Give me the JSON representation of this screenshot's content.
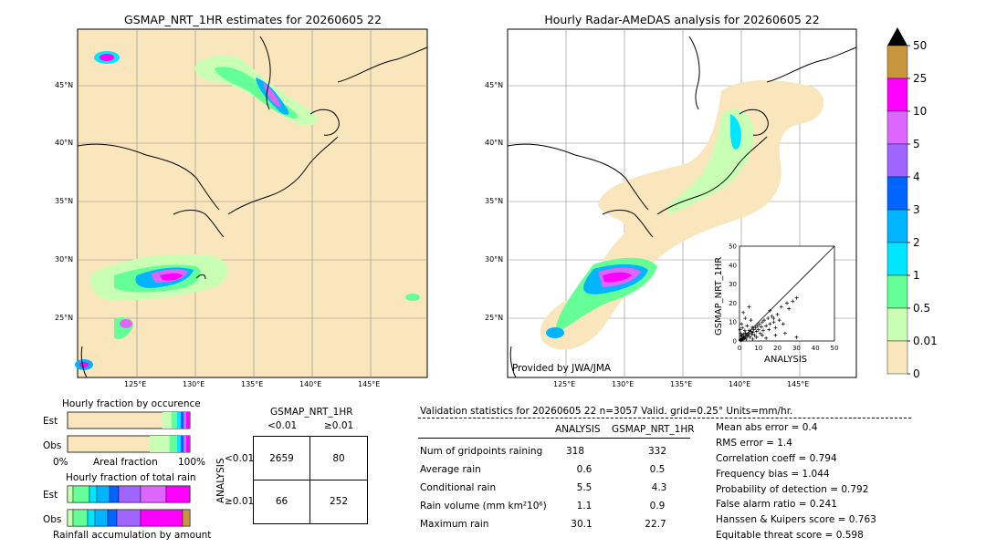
{
  "left_map": {
    "title": "GSMAP_NRT_1HR estimates for 20260605 22",
    "lon_labels": [
      "125°E",
      "130°E",
      "135°E",
      "140°E",
      "145°E"
    ],
    "lat_labels": [
      "45°N",
      "40°N",
      "35°N",
      "30°N",
      "25°N"
    ]
  },
  "right_map": {
    "title": "Hourly Radar-AMeDAS analysis for 20260605 22",
    "lon_labels": [
      "125°E",
      "130°E",
      "135°E",
      "140°E",
      "145°E"
    ],
    "lat_labels": [
      "45°N",
      "40°N",
      "35°N",
      "30°N",
      "25°N"
    ],
    "credit": "Provided by JWA/JMA"
  },
  "colorbar": {
    "labels": [
      "50",
      "25",
      "10",
      "5",
      "4",
      "3",
      "2",
      "1",
      "0.5",
      "0.01",
      "0"
    ],
    "colors": [
      "#c8963c",
      "#ff00ff",
      "#dd66ff",
      "#a064ff",
      "#0064ff",
      "#00b4ff",
      "#00e6ff",
      "#64ff96",
      "#c8ffb4",
      "#fae6bc"
    ],
    "extend_color": "#000000"
  },
  "fraction_occurrence": {
    "title": "Hourly fraction by occurence",
    "rows": [
      "Est",
      "Obs"
    ],
    "axis_left": "0%",
    "axis_mid": "Areal fraction",
    "axis_right": "100%"
  },
  "fraction_total": {
    "title": "Hourly fraction of total rain",
    "rows": [
      "Est",
      "Obs"
    ],
    "axis_label": "Rainfall accumulation by amount"
  },
  "contingency": {
    "col_header": "GSMAP_NRT_1HR",
    "col_labels": [
      "<0.01",
      "≥0.01"
    ],
    "row_header": "ANALYSIS",
    "row_labels": [
      "<0.01",
      "≥0.01"
    ],
    "cells": [
      [
        "2659",
        "80"
      ],
      [
        "66",
        "252"
      ]
    ]
  },
  "validation": {
    "header": "Validation statistics for 20260605 22  n=3057 Valid. grid=0.25° Units=mm/hr.",
    "col_analysis": "ANALYSIS",
    "col_gsmap": "GSMAP_NRT_1HR",
    "rows": [
      {
        "label": "Num of gridpoints raining",
        "analysis": "318",
        "gsmap": "332"
      },
      {
        "label": "Average rain",
        "analysis": "0.6",
        "gsmap": "0.5"
      },
      {
        "label": "Conditional rain",
        "analysis": "5.5",
        "gsmap": "4.3"
      },
      {
        "label": "Rain volume (mm km²10⁶)",
        "analysis": "1.1",
        "gsmap": "0.9"
      },
      {
        "label": "Maximum rain",
        "analysis": "30.1",
        "gsmap": "22.7"
      }
    ],
    "scores": [
      "Mean abs error =    0.4",
      "RMS error =    1.4",
      "Correlation coeff =  0.794",
      "Frequency bias =  1.044",
      "Probability of detection =  0.792",
      "False alarm ratio =  0.241",
      "Hanssen & Kuipers score =  0.763",
      "Equitable threat score =  0.598"
    ]
  },
  "chart_data": {
    "type": "scatter",
    "xlabel": "ANALYSIS",
    "ylabel": "GSMAP_NRT_1HR",
    "xlim": [
      0,
      50
    ],
    "ylim": [
      0,
      50
    ],
    "x_ticks": [
      "0",
      "10",
      "20",
      "30",
      "40",
      "50"
    ],
    "y_ticks": [
      "0",
      "10",
      "20",
      "30",
      "40",
      "50"
    ],
    "points": [
      [
        0.5,
        0.3
      ],
      [
        1,
        0.5
      ],
      [
        1.5,
        1
      ],
      [
        2,
        0.8
      ],
      [
        2.5,
        1.5
      ],
      [
        3,
        2
      ],
      [
        0.8,
        2.5
      ],
      [
        1.2,
        3
      ],
      [
        2,
        3.5
      ],
      [
        3.5,
        1
      ],
      [
        4,
        2.5
      ],
      [
        4.5,
        3
      ],
      [
        5,
        4
      ],
      [
        5.5,
        2
      ],
      [
        6,
        5
      ],
      [
        6.5,
        3.5
      ],
      [
        7,
        4.5
      ],
      [
        7.5,
        6
      ],
      [
        8,
        3
      ],
      [
        8.5,
        7
      ],
      [
        9,
        5
      ],
      [
        9.5,
        8
      ],
      [
        10,
        6
      ],
      [
        10.5,
        9
      ],
      [
        11,
        4
      ],
      [
        11.5,
        7.5
      ],
      [
        12,
        10
      ],
      [
        12.5,
        5.5
      ],
      [
        13,
        11
      ],
      [
        14,
        8
      ],
      [
        15,
        12
      ],
      [
        15.5,
        6
      ],
      [
        16,
        9
      ],
      [
        17,
        13
      ],
      [
        18,
        10
      ],
      [
        19,
        7
      ],
      [
        20,
        14
      ],
      [
        21,
        11
      ],
      [
        22,
        18
      ],
      [
        23,
        9
      ],
      [
        25,
        20
      ],
      [
        2,
        15
      ],
      [
        3,
        12
      ],
      [
        5,
        18
      ],
      [
        1,
        9
      ],
      [
        4,
        8
      ],
      [
        6,
        11
      ],
      [
        30,
        2
      ],
      [
        24,
        4
      ],
      [
        19,
        3
      ],
      [
        28,
        21
      ],
      [
        0.3,
        6
      ],
      [
        0.6,
        4
      ],
      [
        1.5,
        7
      ],
      [
        2.8,
        5.5
      ],
      [
        3.2,
        4.2
      ],
      [
        7,
        1
      ],
      [
        9,
        2
      ],
      [
        12,
        3
      ],
      [
        14,
        1.5
      ],
      [
        16,
        16
      ],
      [
        18,
        12
      ],
      [
        26,
        17
      ],
      [
        30.1,
        22.7
      ],
      [
        1,
        1.2
      ],
      [
        0.4,
        0.8
      ],
      [
        2.2,
        2.1
      ],
      [
        3.8,
        3.4
      ],
      [
        5.2,
        5.6
      ],
      [
        6.8,
        7.2
      ]
    ]
  }
}
